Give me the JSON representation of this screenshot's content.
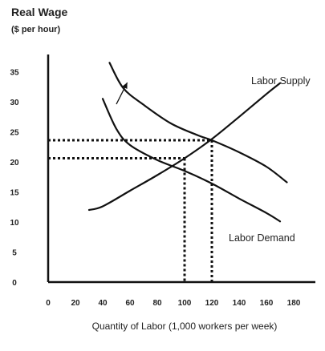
{
  "chart_data": {
    "type": "line",
    "title": "",
    "ylabel_line1": "Real Wage",
    "ylabel_line2": "($ per hour)",
    "xlabel": "Quantity of Labor (1,000 workers per week)",
    "x_ticks": [
      0,
      20,
      40,
      60,
      80,
      100,
      120,
      140,
      160,
      180
    ],
    "y_ticks": [
      0,
      5,
      10,
      15,
      20,
      25,
      30,
      35
    ],
    "xlim": [
      0,
      185
    ],
    "ylim": [
      0,
      38
    ],
    "grid": false,
    "series": [
      {
        "name": "Labor Supply",
        "label_text": "Labor Supply",
        "x": [
          30,
          40,
          60,
          80,
          100,
          120,
          140,
          160,
          170
        ],
        "y": [
          12,
          12.6,
          15.2,
          17.8,
          20.6,
          23.8,
          27.5,
          31.3,
          33.1
        ]
      },
      {
        "name": "Labor Demand",
        "label_text": "Labor Demand",
        "x": [
          40,
          50,
          60,
          80,
          100,
          120,
          140,
          160,
          170
        ],
        "y": [
          30.5,
          25.5,
          22.8,
          20.3,
          18.5,
          16.4,
          13.9,
          11.5,
          10.1
        ]
      },
      {
        "name": "Labor Demand (shifted)",
        "x": [
          45,
          55,
          70,
          90,
          110,
          120,
          140,
          160,
          175
        ],
        "y": [
          36.5,
          32.3,
          29.5,
          26.4,
          24.4,
          23.6,
          21.6,
          19.2,
          16.6
        ]
      }
    ],
    "equilibria": [
      {
        "x": 100,
        "y": 20.6
      },
      {
        "x": 120,
        "y": 23.6
      }
    ],
    "shift_arrow": {
      "from": {
        "x": 50,
        "y": 29.6
      },
      "to": {
        "x": 58,
        "y": 33.2
      }
    }
  }
}
